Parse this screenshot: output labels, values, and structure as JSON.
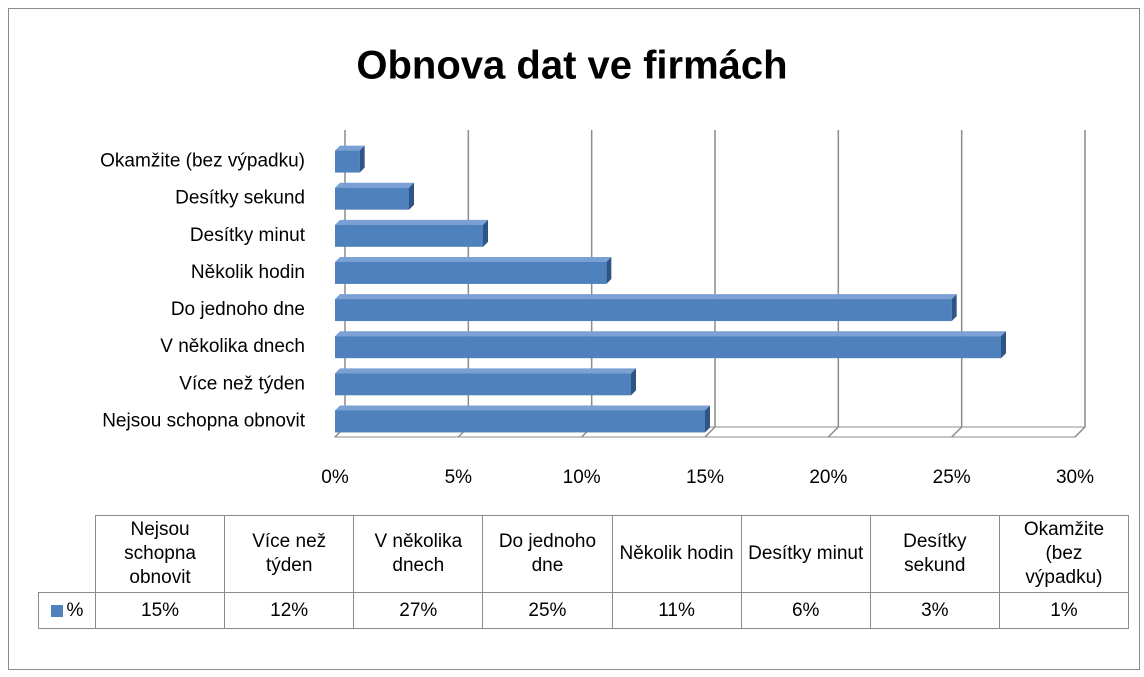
{
  "chart_data": {
    "type": "bar",
    "orientation": "horizontal",
    "title": "Obnova dat ve firmách",
    "categories": [
      "Nejsou schopna obnovit",
      "Více než týden",
      "V několika dnech",
      "Do jednoho dne",
      "Několik hodin",
      "Desítky minut",
      "Desítky sekund",
      "Okamžite (bez výpadku)"
    ],
    "series": [
      {
        "name": "%",
        "color": "#4f81bd",
        "values": [
          15,
          12,
          27,
          25,
          11,
          6,
          3,
          1
        ],
        "value_labels": [
          "15%",
          "12%",
          "27%",
          "25%",
          "11%",
          "6%",
          "3%",
          "1%"
        ]
      }
    ],
    "xlim": [
      0,
      30
    ],
    "xticks": [
      {
        "value": 0,
        "label": "0%"
      },
      {
        "value": 5,
        "label": "5%"
      },
      {
        "value": 10,
        "label": "10%"
      },
      {
        "value": 15,
        "label": "15%"
      },
      {
        "value": 20,
        "label": "20%"
      },
      {
        "value": 25,
        "label": "25%"
      },
      {
        "value": 30,
        "label": "30%"
      }
    ],
    "grid": true,
    "data_table": true
  }
}
